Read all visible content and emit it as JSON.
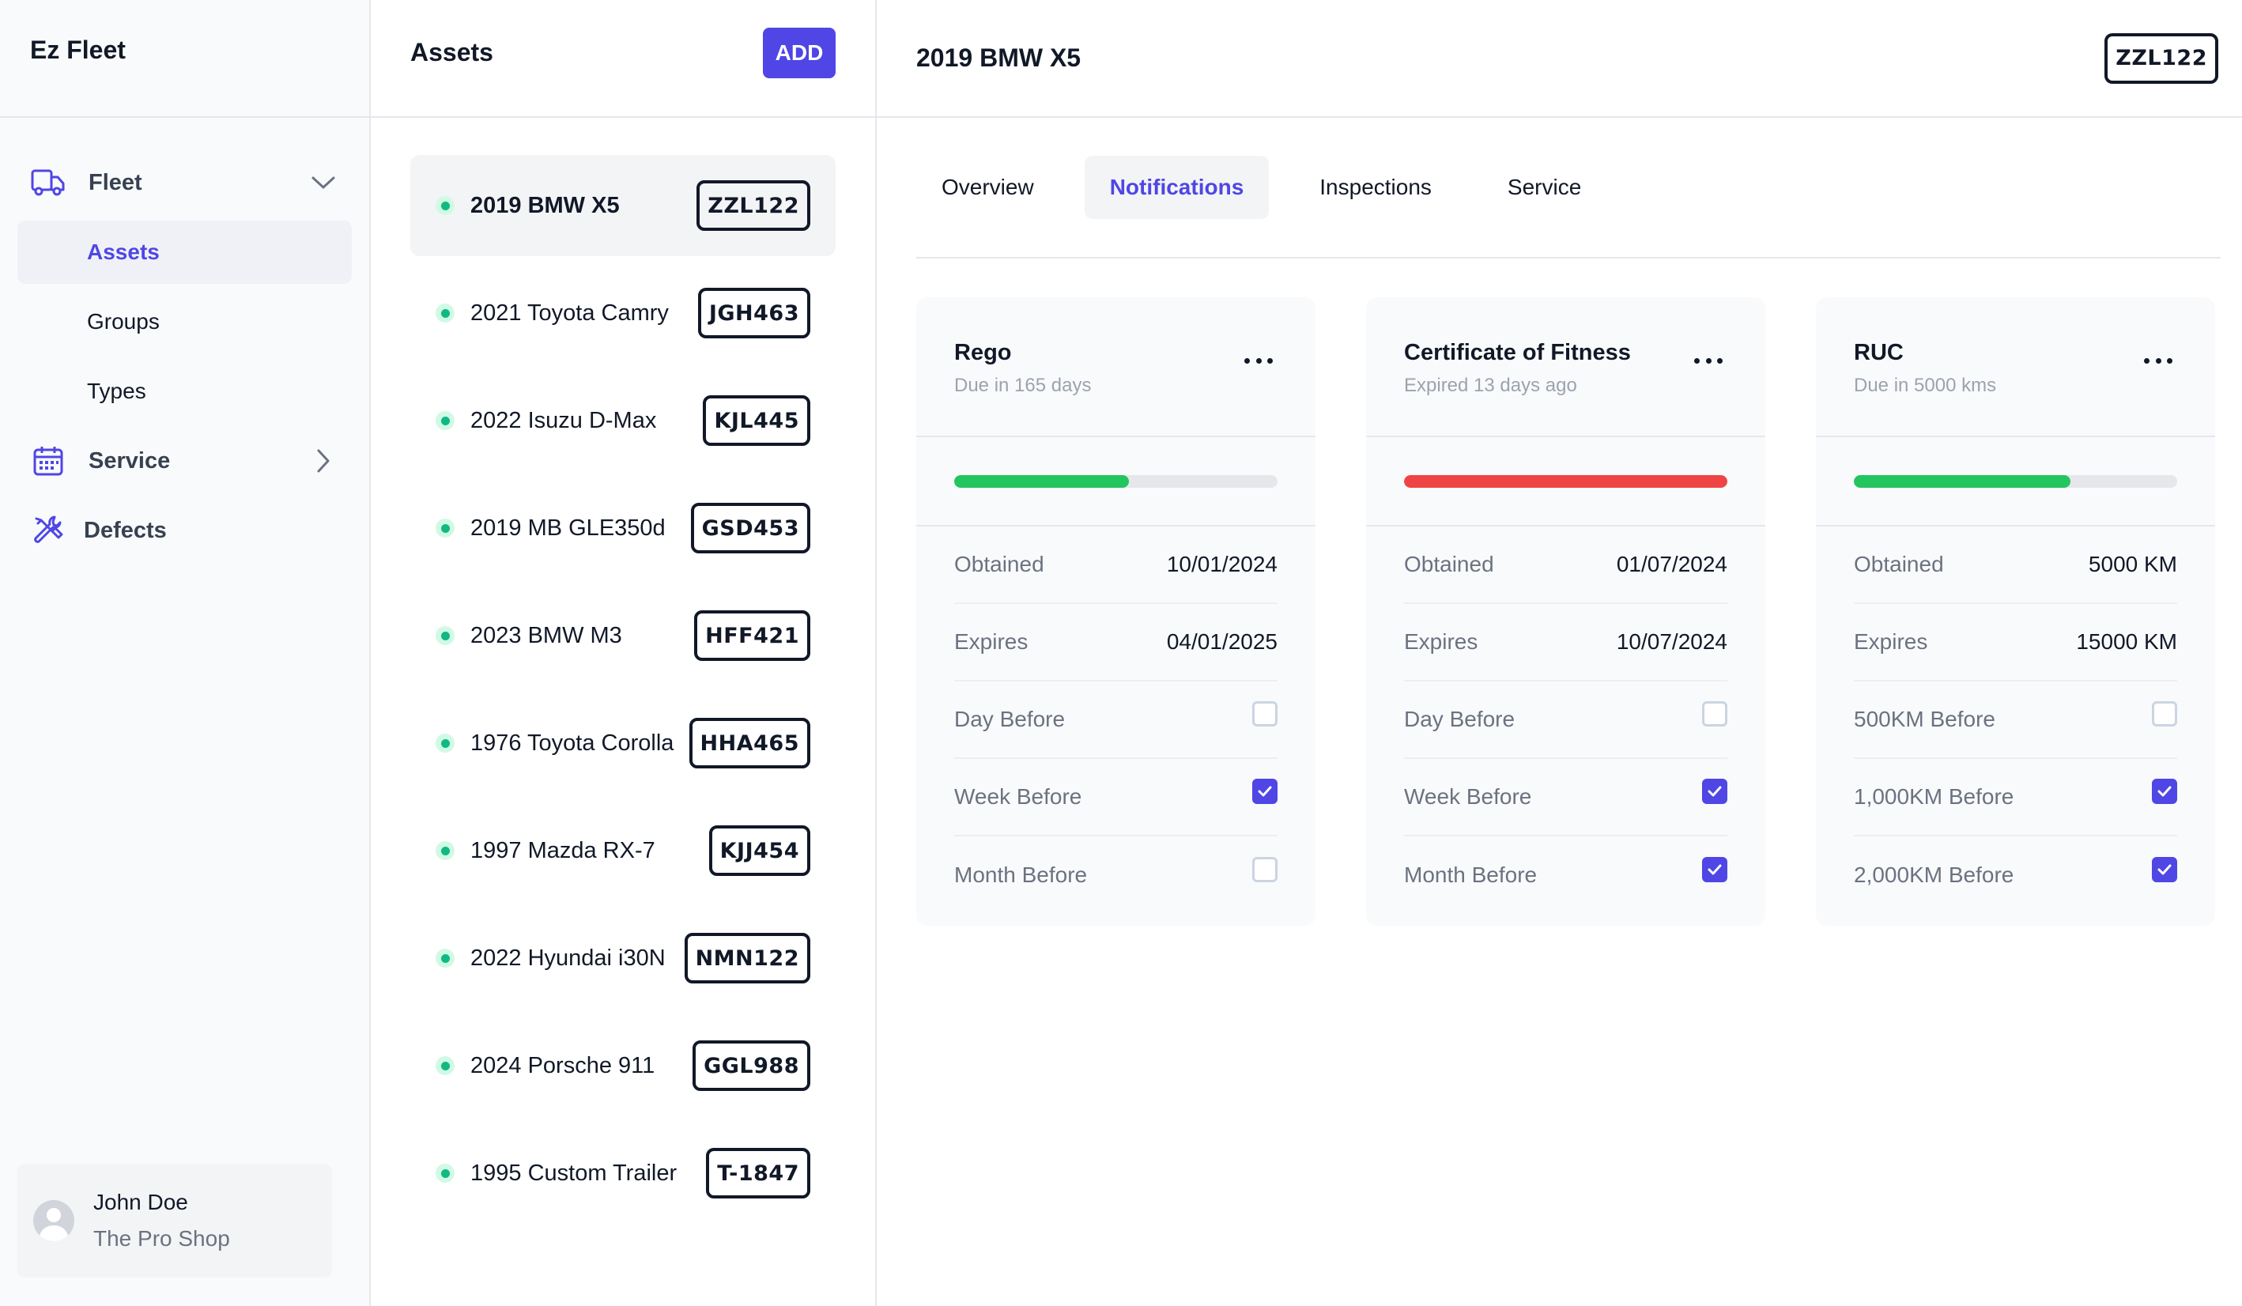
{
  "app": {
    "title": "Ez Fleet"
  },
  "sidebar": {
    "nav": [
      {
        "label": "Fleet",
        "icon": "truck-icon",
        "expanded": true,
        "children": [
          {
            "label": "Assets",
            "active": true
          },
          {
            "label": "Groups",
            "active": false
          },
          {
            "label": "Types",
            "active": false
          }
        ]
      },
      {
        "label": "Service",
        "icon": "calendar-icon",
        "expanded": false
      },
      {
        "label": "Defects",
        "icon": "wrench-screwdriver-icon"
      }
    ],
    "user": {
      "name": "John Doe",
      "org": "The Pro Shop"
    }
  },
  "assets": {
    "title": "Assets",
    "add_label": "ADD",
    "items": [
      {
        "name": "2019 BMW X5",
        "plate": "ZZL122",
        "selected": true
      },
      {
        "name": "2021 Toyota Camry",
        "plate": "JGH463"
      },
      {
        "name": "2022 Isuzu D-Max",
        "plate": "KJL445"
      },
      {
        "name": "2019 MB GLE350d",
        "plate": "GSD453"
      },
      {
        "name": "2023 BMW M3",
        "plate": "HFF421"
      },
      {
        "name": "1976 Toyota Corolla",
        "plate": "HHA465"
      },
      {
        "name": "1997 Mazda RX-7",
        "plate": "KJJ454"
      },
      {
        "name": "2022 Hyundai i30N",
        "plate": "NMN122"
      },
      {
        "name": "2024 Porsche 911",
        "plate": "GGL988"
      },
      {
        "name": "1995 Custom Trailer",
        "plate": "T-1847"
      }
    ]
  },
  "detail": {
    "title": "2019 BMW X5",
    "plate": "ZZL122",
    "tabs": [
      {
        "label": "Overview",
        "active": false
      },
      {
        "label": "Notifications",
        "active": true
      },
      {
        "label": "Inspections",
        "active": false
      },
      {
        "label": "Service",
        "active": false
      }
    ],
    "cards": [
      {
        "title": "Rego",
        "subtitle": "Due in 165 days",
        "progress": 0.54,
        "bar_color": "#22c55e",
        "rows": [
          {
            "label": "Obtained",
            "value": "10/01/2024"
          },
          {
            "label": "Expires",
            "value": "04/01/2025"
          },
          {
            "label": "Day Before",
            "checked": false
          },
          {
            "label": "Week Before",
            "checked": true
          },
          {
            "label": "Month Before",
            "checked": false
          }
        ]
      },
      {
        "title": "Certificate of Fitness",
        "subtitle": "Expired 13 days ago",
        "progress": 1.0,
        "bar_color": "#ef4444",
        "rows": [
          {
            "label": "Obtained",
            "value": "01/07/2024"
          },
          {
            "label": "Expires",
            "value": "10/07/2024"
          },
          {
            "label": "Day Before",
            "checked": false
          },
          {
            "label": "Week Before",
            "checked": true
          },
          {
            "label": "Month Before",
            "checked": true
          }
        ]
      },
      {
        "title": "RUC",
        "subtitle": "Due in 5000 kms",
        "progress": 0.67,
        "bar_color": "#22c55e",
        "rows": [
          {
            "label": "Obtained",
            "value": "5000 KM"
          },
          {
            "label": "Expires",
            "value": "15000 KM"
          },
          {
            "label": "500KM Before",
            "checked": false
          },
          {
            "label": "1,000KM Before",
            "checked": true
          },
          {
            "label": "2,000KM Before",
            "checked": true
          }
        ]
      }
    ]
  }
}
